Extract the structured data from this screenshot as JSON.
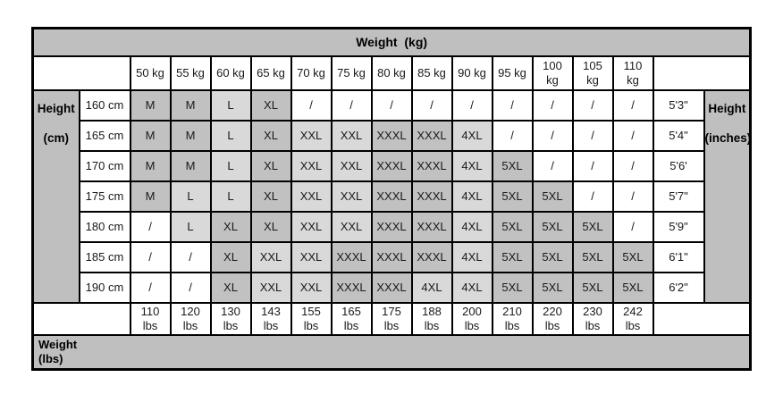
{
  "chart_data": {
    "type": "table",
    "title": "Weight  (kg)",
    "left_axis_label_line1": "Height",
    "left_axis_label_line2": "(cm)",
    "right_axis_label_line1": "Height",
    "right_axis_label_line2": "(inches)",
    "bottom_axis_label": "Weight (lbs)",
    "kg_columns": [
      "50 kg",
      "55 kg",
      "60 kg",
      "65 kg",
      "70 kg",
      "75 kg",
      "80 kg",
      "85 kg",
      "90 kg",
      "95 kg",
      "100 kg",
      "105 kg",
      "110 kg"
    ],
    "lbs_columns": [
      "110 lbs",
      "120 lbs",
      "130 lbs",
      "143 lbs",
      "155 lbs",
      "165 lbs",
      "175 lbs",
      "188 lbs",
      "200 lbs",
      "210 lbs",
      "220 lbs",
      "230 lbs",
      "242 lbs"
    ],
    "cm_rows": [
      "160 cm",
      "165 cm",
      "170 cm",
      "175 cm",
      "180 cm",
      "185 cm",
      "190 cm"
    ],
    "inches_rows": [
      "5'3\"",
      "5'4\"",
      "5'6'",
      "5'7\"",
      "5'9\"",
      "6'1\"",
      "6'2\""
    ],
    "matrix": [
      [
        "M",
        "M",
        "L",
        "XL",
        "/",
        "/",
        "/",
        "/",
        "/",
        "/",
        "/",
        "/",
        "/"
      ],
      [
        "M",
        "M",
        "L",
        "XL",
        "XXL",
        "XXL",
        "XXXL",
        "XXXL",
        "4XL",
        "/",
        "/",
        "/",
        "/"
      ],
      [
        "M",
        "M",
        "L",
        "XL",
        "XXL",
        "XXL",
        "XXXL",
        "XXXL",
        "4XL",
        "5XL",
        "/",
        "/",
        "/"
      ],
      [
        "M",
        "L",
        "L",
        "XL",
        "XXL",
        "XXL",
        "XXXL",
        "XXXL",
        "4XL",
        "5XL",
        "5XL",
        "/",
        "/"
      ],
      [
        "/",
        "L",
        "XL",
        "XL",
        "XXL",
        "XXL",
        "XXXL",
        "XXXL",
        "4XL",
        "5XL",
        "5XL",
        "5XL",
        "/"
      ],
      [
        "/",
        "/",
        "XL",
        "XXL",
        "XXL",
        "XXXL",
        "XXXL",
        "XXXL",
        "4XL",
        "5XL",
        "5XL",
        "5XL",
        "5XL"
      ],
      [
        "/",
        "/",
        "XL",
        "XXL",
        "XXL",
        "XXXL",
        "XXXL",
        "4XL",
        "4XL",
        "5XL",
        "5XL",
        "5XL",
        "5XL"
      ]
    ],
    "shade_map": {
      "M": "dark",
      "L": "light",
      "XL": "dark",
      "XXL": "light",
      "XXXL": "dark",
      "4XL": "light",
      "5XL": "dark",
      "/": "none"
    },
    "colors": {
      "header_bg": "#bfbfbf",
      "size_dark_bg": "#c1c1c1",
      "size_light_bg": "#d9d9d9",
      "empty_bg": "#ffffff",
      "border": "#000000",
      "text": "#1a1a1a"
    },
    "layout": {
      "grid": "on",
      "columns_total": 17,
      "data_rows": 7
    }
  }
}
